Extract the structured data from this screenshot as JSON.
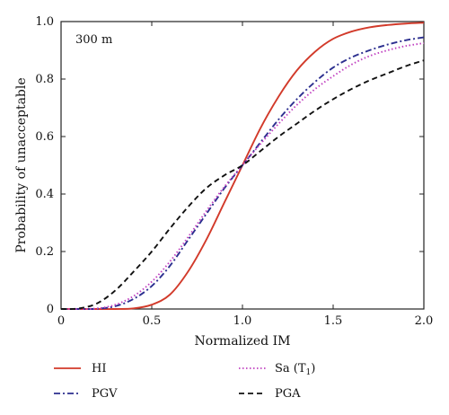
{
  "chart_data": {
    "type": "line",
    "title": "",
    "annotation": "300 m",
    "xlabel": "Normalized IM",
    "ylabel": "Probability of unacceptable",
    "xlim": [
      0,
      2.0
    ],
    "ylim": [
      0,
      1.0
    ],
    "xticks": [
      "0",
      "0.5",
      "1.0",
      "1.5",
      "2.0"
    ],
    "yticks": [
      "0",
      "0.2",
      "0.4",
      "0.6",
      "0.8",
      "1.0"
    ],
    "grid": false,
    "legend_position": "below",
    "x": [
      0,
      0.1,
      0.2,
      0.3,
      0.4,
      0.5,
      0.6,
      0.7,
      0.8,
      0.9,
      1.0,
      1.1,
      1.2,
      1.3,
      1.4,
      1.5,
      1.6,
      1.7,
      1.8,
      1.9,
      2.0
    ],
    "series": [
      {
        "name": "HI",
        "color": "#d23a2a",
        "dash": "solid",
        "values": [
          0,
          0,
          0,
          0,
          0.002,
          0.015,
          0.05,
          0.13,
          0.24,
          0.37,
          0.5,
          0.63,
          0.74,
          0.83,
          0.895,
          0.94,
          0.965,
          0.98,
          0.988,
          0.993,
          0.996
        ]
      },
      {
        "name": "PGV",
        "color": "#2c2f8f",
        "dash": "dashdot",
        "values": [
          0,
          0,
          0.001,
          0.01,
          0.035,
          0.08,
          0.15,
          0.24,
          0.33,
          0.42,
          0.5,
          0.58,
          0.66,
          0.73,
          0.79,
          0.84,
          0.875,
          0.9,
          0.92,
          0.935,
          0.945
        ]
      },
      {
        "name": "Sa (T1)",
        "color": "#c040c0",
        "dash": "dotted",
        "values": [
          0,
          0,
          0.002,
          0.015,
          0.045,
          0.095,
          0.165,
          0.25,
          0.34,
          0.425,
          0.5,
          0.575,
          0.645,
          0.71,
          0.765,
          0.81,
          0.85,
          0.88,
          0.9,
          0.915,
          0.925
        ]
      },
      {
        "name": "PGA",
        "color": "#111111",
        "dash": "dashed",
        "values": [
          0,
          0.002,
          0.02,
          0.065,
          0.13,
          0.2,
          0.28,
          0.355,
          0.42,
          0.465,
          0.5,
          0.55,
          0.6,
          0.645,
          0.69,
          0.73,
          0.765,
          0.795,
          0.82,
          0.845,
          0.865
        ]
      }
    ]
  }
}
